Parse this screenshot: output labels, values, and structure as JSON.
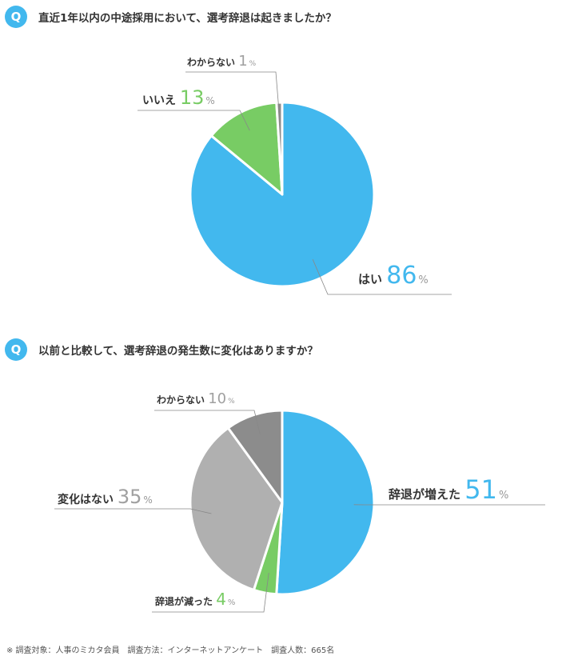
{
  "q1": {
    "badge": "Q",
    "text": "直近1年以内の中途採用において、選考辞退は起きましたか？"
  },
  "q2": {
    "badge": "Q",
    "text": "以前と比較して、選考辞退の発生数に変化はありますか？"
  },
  "footnote": "※ 調査対象：人事のミカタ会員　調査方法：インターネットアンケート　調査人数：665名",
  "chart_data": [
    {
      "type": "pie",
      "title": "",
      "slices": [
        {
          "label": "はい",
          "value": 86,
          "unit": "%",
          "color": "#42b8ee"
        },
        {
          "label": "いいえ",
          "value": 13,
          "unit": "%",
          "color": "#78cc64"
        },
        {
          "label": "わからない",
          "value": 1,
          "unit": "%",
          "color": "#8c8c8c"
        }
      ]
    },
    {
      "type": "pie",
      "title": "",
      "slices": [
        {
          "label": "辞退が増えた",
          "value": 51,
          "unit": "%",
          "color": "#42b8ee"
        },
        {
          "label": "辞退が減った",
          "value": 4,
          "unit": "%",
          "color": "#78cc64"
        },
        {
          "label": "変化はない",
          "value": 35,
          "unit": "%",
          "color": "#b0b0b0"
        },
        {
          "label": "わからない",
          "value": 10,
          "unit": "%",
          "color": "#8c8c8c"
        }
      ]
    }
  ]
}
